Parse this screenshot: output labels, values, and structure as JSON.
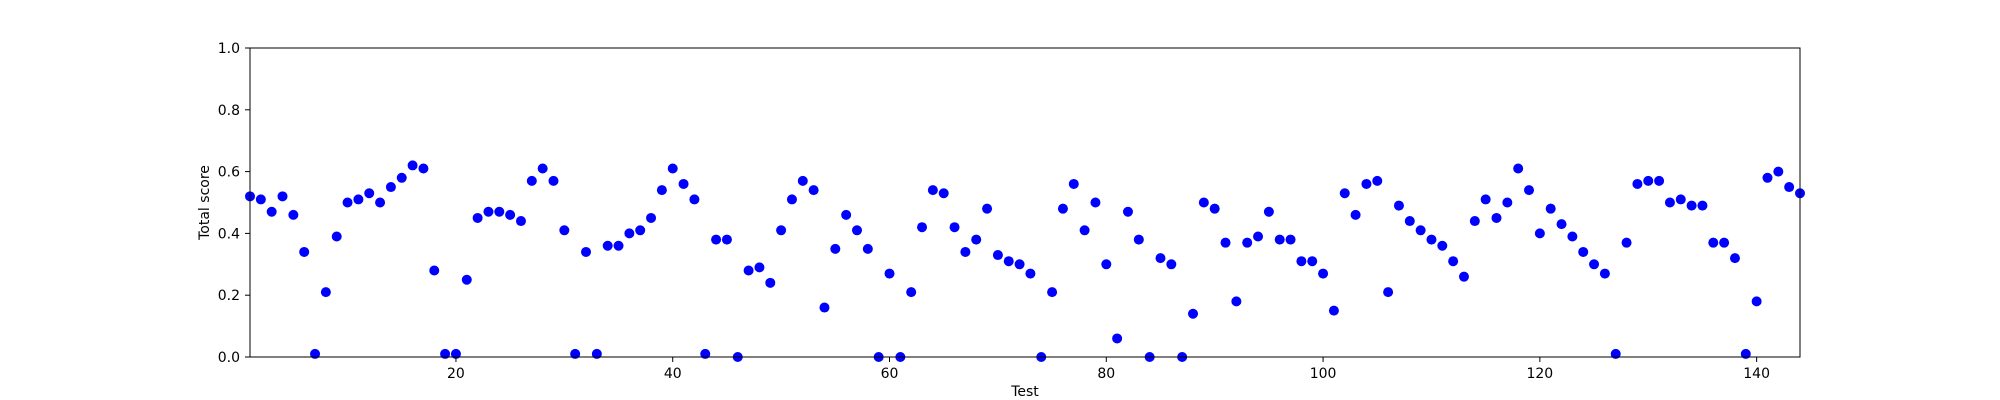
{
  "chart_data": {
    "type": "scatter",
    "xlabel": "Test",
    "ylabel": "Total score",
    "xlim": [
      1,
      144
    ],
    "ylim": [
      0,
      1
    ],
    "xticks": [
      20,
      40,
      60,
      80,
      100,
      120,
      140
    ],
    "yticks": [
      0.0,
      0.2,
      0.4,
      0.6,
      0.8,
      1.0
    ],
    "xtick_labels": [
      "20",
      "40",
      "60",
      "80",
      "100",
      "120",
      "140"
    ],
    "ytick_labels": [
      "0.0",
      "0.2",
      "0.4",
      "0.6",
      "0.8",
      "1.0"
    ],
    "grid": false,
    "marker_color": "#0000ff",
    "x": [
      1,
      2,
      3,
      4,
      5,
      6,
      7,
      8,
      9,
      10,
      11,
      12,
      13,
      14,
      15,
      16,
      17,
      18,
      19,
      20,
      21,
      22,
      23,
      24,
      25,
      26,
      27,
      28,
      29,
      30,
      31,
      32,
      33,
      34,
      35,
      36,
      37,
      38,
      39,
      40,
      41,
      42,
      43,
      44,
      45,
      46,
      47,
      48,
      49,
      50,
      51,
      52,
      53,
      54,
      55,
      56,
      57,
      58,
      59,
      60,
      61,
      62,
      63,
      64,
      65,
      66,
      67,
      68,
      69,
      70,
      71,
      72,
      73,
      74,
      75,
      76,
      77,
      78,
      79,
      80,
      81,
      82,
      83,
      84,
      85,
      86,
      87,
      88,
      89,
      90,
      91,
      92,
      93,
      94,
      95,
      96,
      97,
      98,
      99,
      100,
      101,
      102,
      103,
      104,
      105,
      106,
      107,
      108,
      109,
      110,
      111,
      112,
      113,
      114,
      115,
      116,
      117,
      118,
      119,
      120,
      121,
      122,
      123,
      124,
      125,
      126,
      127,
      128,
      129,
      130,
      131,
      132,
      133,
      134,
      135,
      136,
      137,
      138,
      139,
      140,
      141,
      142,
      143,
      144
    ],
    "y": [
      0.52,
      0.51,
      0.47,
      0.52,
      0.46,
      0.34,
      0.01,
      0.21,
      0.39,
      0.5,
      0.51,
      0.53,
      0.5,
      0.55,
      0.58,
      0.62,
      0.61,
      0.28,
      0.01,
      0.01,
      0.25,
      0.45,
      0.47,
      0.47,
      0.46,
      0.44,
      0.57,
      0.61,
      0.57,
      0.41,
      0.01,
      0.34,
      0.01,
      0.36,
      0.36,
      0.4,
      0.41,
      0.45,
      0.54,
      0.61,
      0.56,
      0.51,
      0.01,
      0.38,
      0.38,
      0.0,
      0.28,
      0.29,
      0.24,
      0.41,
      0.51,
      0.57,
      0.54,
      0.16,
      0.35,
      0.46,
      0.41,
      0.35,
      0.0,
      0.27,
      0.0,
      0.21,
      0.42,
      0.54,
      0.53,
      0.42,
      0.34,
      0.38,
      0.48,
      0.33,
      0.31,
      0.3,
      0.27,
      0.0,
      0.21,
      0.48,
      0.56,
      0.41,
      0.5,
      0.3,
      0.06,
      0.47,
      0.38,
      0.0,
      0.32,
      0.3,
      0.0,
      0.14,
      0.5,
      0.48,
      0.37,
      0.18,
      0.37,
      0.39,
      0.47,
      0.38,
      0.38,
      0.31,
      0.31,
      0.27,
      0.15,
      0.53,
      0.46,
      0.56,
      0.57,
      0.21,
      0.49,
      0.44,
      0.41,
      0.38,
      0.36,
      0.31,
      0.26,
      0.44,
      0.51,
      0.45,
      0.5,
      0.61,
      0.54,
      0.4,
      0.48,
      0.43,
      0.39,
      0.34,
      0.3,
      0.27,
      0.01,
      0.37,
      0.56,
      0.57,
      0.57,
      0.5,
      0.51,
      0.49,
      0.49,
      0.37,
      0.37,
      0.32,
      0.01,
      0.18,
      0.58,
      0.6,
      0.55,
      0.53
    ]
  }
}
